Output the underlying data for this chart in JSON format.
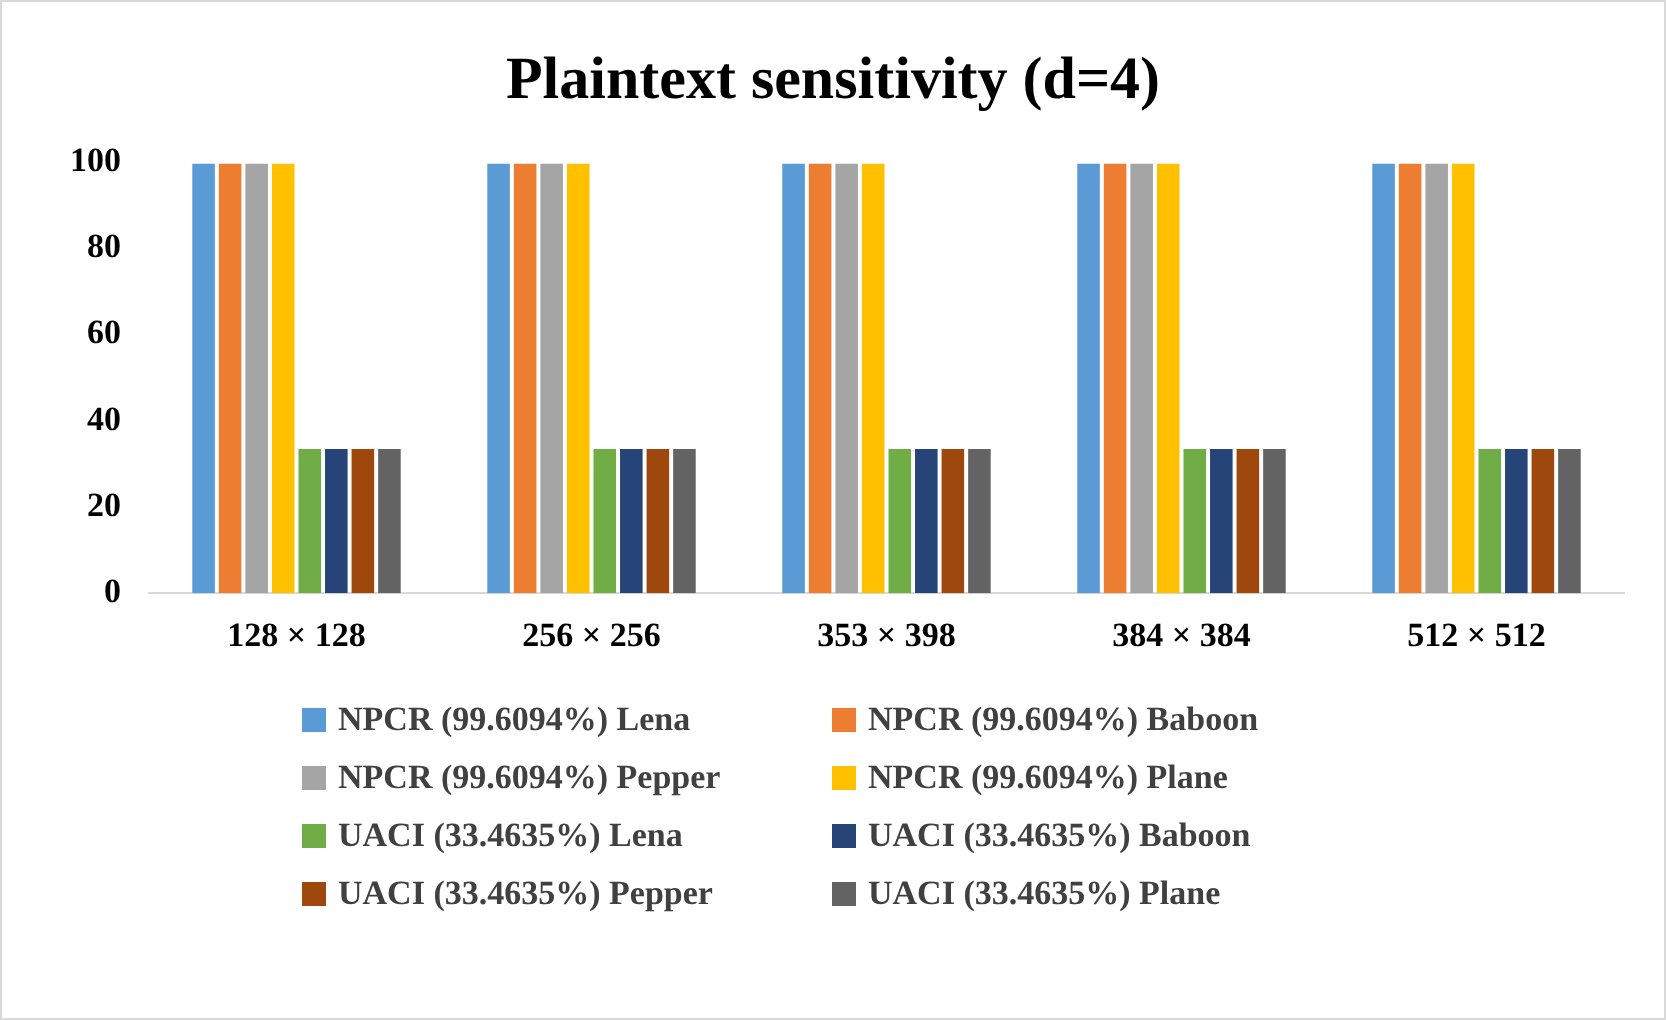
{
  "chart_data": {
    "type": "bar",
    "title": "Plaintext sensitivity (d=4)",
    "categories": [
      "128 × 128",
      "256 × 256",
      "353 × 398",
      "384 × 384",
      "512 × 512"
    ],
    "ylim": [
      0,
      100
    ],
    "yticks": [
      0,
      20,
      40,
      60,
      80,
      100
    ],
    "grid": false,
    "legend": "bottom",
    "series": [
      {
        "name": "NPCR (99.6094%) Lena",
        "color": "#5b9bd5",
        "values": [
          99.6094,
          99.6094,
          99.6094,
          99.6094,
          99.6094
        ]
      },
      {
        "name": "NPCR (99.6094%) Baboon",
        "color": "#ed7d31",
        "values": [
          99.6094,
          99.6094,
          99.6094,
          99.6094,
          99.6094
        ]
      },
      {
        "name": "NPCR (99.6094%) Pepper",
        "color": "#a5a5a5",
        "values": [
          99.6094,
          99.6094,
          99.6094,
          99.6094,
          99.6094
        ]
      },
      {
        "name": "NPCR (99.6094%) Plane",
        "color": "#ffc000",
        "values": [
          99.6094,
          99.6094,
          99.6094,
          99.6094,
          99.6094
        ]
      },
      {
        "name": "UACI (33.4635%) Lena",
        "color": "#70ad47",
        "values": [
          33.4635,
          33.4635,
          33.4635,
          33.4635,
          33.4635
        ]
      },
      {
        "name": "UACI (33.4635%) Baboon",
        "color": "#264478",
        "values": [
          33.4635,
          33.4635,
          33.4635,
          33.4635,
          33.4635
        ]
      },
      {
        "name": "UACI (33.4635%) Pepper",
        "color": "#9e480e",
        "values": [
          33.4635,
          33.4635,
          33.4635,
          33.4635,
          33.4635
        ]
      },
      {
        "name": "UACI (33.4635%) Plane",
        "color": "#636363",
        "values": [
          33.4635,
          33.4635,
          33.4635,
          33.4635,
          33.4635
        ]
      }
    ]
  }
}
